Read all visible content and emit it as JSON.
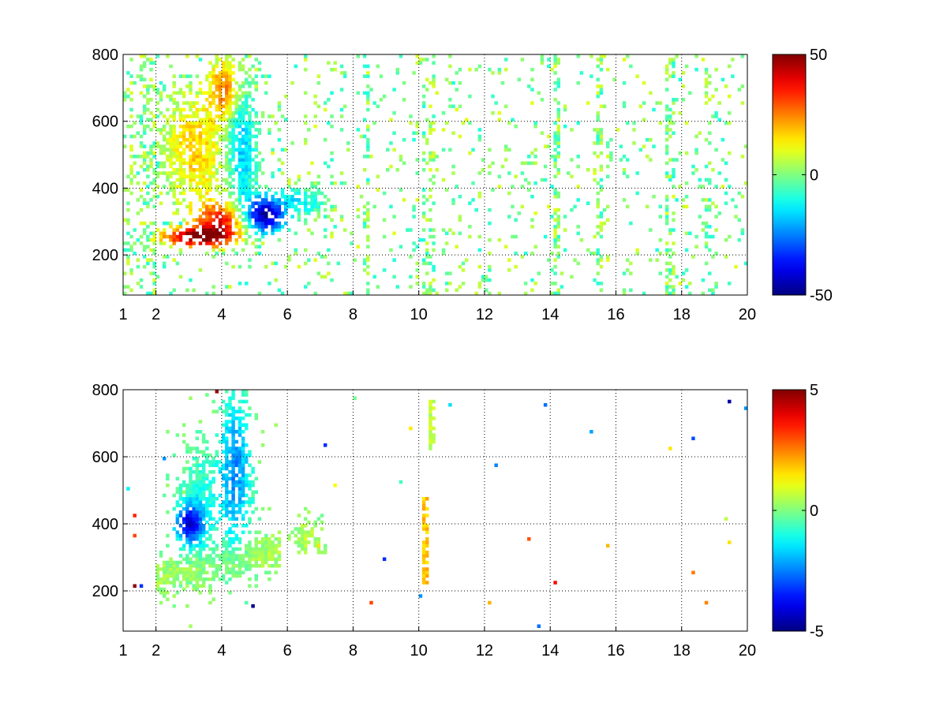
{
  "chart_data": [
    {
      "type": "heatmap",
      "title": "",
      "xlabel": "",
      "ylabel": "",
      "xlim": [
        1,
        20
      ],
      "ylim": [
        80,
        800
      ],
      "xticks": [
        1,
        2,
        4,
        6,
        8,
        10,
        12,
        14,
        16,
        18,
        20
      ],
      "yticks": [
        200,
        400,
        600,
        800
      ],
      "grid": true,
      "colormap": "jet",
      "clim": [
        -50,
        50
      ],
      "colorbar_ticks": [
        50,
        0,
        -50
      ],
      "features": [
        {
          "kind": "blob",
          "x": 3.2,
          "y": 255,
          "sx": 0.7,
          "sy": 20,
          "value": 48
        },
        {
          "kind": "blob",
          "x": 4.0,
          "y": 300,
          "sx": 0.6,
          "sy": 45,
          "value": 36
        },
        {
          "kind": "blob",
          "x": 3.2,
          "y": 520,
          "sx": 0.6,
          "sy": 110,
          "value": 18
        },
        {
          "kind": "blob",
          "x": 4.1,
          "y": 700,
          "sx": 0.35,
          "sy": 60,
          "value": 25
        },
        {
          "kind": "blob",
          "x": 5.3,
          "y": 320,
          "sx": 0.45,
          "sy": 40,
          "value": -48
        },
        {
          "kind": "blob",
          "x": 4.6,
          "y": 520,
          "sx": 0.3,
          "sy": 140,
          "value": -18
        },
        {
          "kind": "blob",
          "x": 6.4,
          "y": 360,
          "sx": 0.45,
          "sy": 30,
          "value": -12
        }
      ],
      "stripes_x": [
        8.4,
        10.2,
        10.4,
        14.2,
        15.5,
        17.6,
        17.7,
        18.8
      ],
      "noise_value_range": [
        -10,
        10
      ]
    },
    {
      "type": "heatmap",
      "title": "",
      "xlabel": "",
      "ylabel": "",
      "xlim": [
        1,
        20
      ],
      "ylim": [
        80,
        800
      ],
      "xticks": [
        1,
        2,
        4,
        6,
        8,
        10,
        12,
        14,
        16,
        18,
        20
      ],
      "yticks": [
        200,
        400,
        600,
        800
      ],
      "grid": true,
      "colormap": "jet",
      "clim": [
        -5,
        5
      ],
      "colorbar_ticks": [
        5,
        0,
        -5
      ],
      "features": [
        {
          "kind": "band",
          "x_start": 2.0,
          "x_end": 5.8,
          "y_at_start": 240,
          "y_at_end": 320,
          "thickness": 70,
          "value": 0.4
        },
        {
          "kind": "blob",
          "x": 3.3,
          "y": 450,
          "sx": 0.45,
          "sy": 120,
          "value": -1.0
        },
        {
          "kind": "blob",
          "x": 4.4,
          "y": 560,
          "sx": 0.35,
          "sy": 160,
          "value": -2.4
        },
        {
          "kind": "blob",
          "x": 3.0,
          "y": 400,
          "sx": 0.3,
          "sy": 40,
          "value": -3.5
        },
        {
          "kind": "blob",
          "x": 6.6,
          "y": 360,
          "sx": 0.25,
          "sy": 35,
          "value": 0.6
        },
        {
          "kind": "stripe",
          "x": 10.2,
          "y_start": 220,
          "y_end": 480,
          "value": 1.8
        },
        {
          "kind": "stripe",
          "x": 10.4,
          "y_start": 620,
          "y_end": 780,
          "value": 0.6
        }
      ],
      "noise_value_range": [
        -5,
        5
      ]
    }
  ]
}
